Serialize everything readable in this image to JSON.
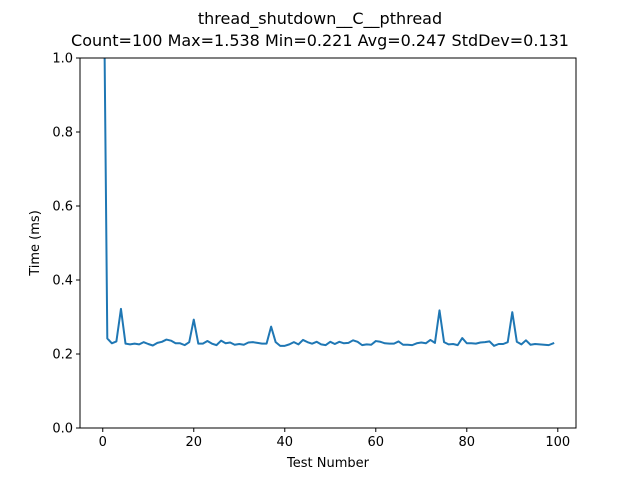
{
  "chart_data": {
    "type": "line",
    "title": "thread_shutdown__C__pthread",
    "subtitle": "Count=100 Max=1.538 Min=0.221 Avg=0.247 StdDev=0.131",
    "xlabel": "Test Number",
    "ylabel": "Time (ms)",
    "xlim": [
      -5,
      104
    ],
    "ylim": [
      0.0,
      1.0
    ],
    "xticks": [
      0,
      20,
      40,
      60,
      80,
      100
    ],
    "xtick_labels": [
      "0",
      "20",
      "40",
      "60",
      "80",
      "100"
    ],
    "yticks": [
      0.0,
      0.2,
      0.4,
      0.6,
      0.8,
      1.0
    ],
    "ytick_labels": [
      "0.0",
      "0.2",
      "0.4",
      "0.6",
      "0.8",
      "1.0"
    ],
    "grid": false,
    "line_color": "#1f77b4",
    "series": [
      {
        "x": [
          0,
          1,
          2,
          3,
          4,
          5,
          6,
          7,
          8,
          9,
          10,
          11,
          12,
          13,
          14,
          15,
          16,
          17,
          18,
          19,
          20,
          21,
          22,
          23,
          24,
          25,
          26,
          27,
          28,
          29,
          30,
          31,
          32,
          33,
          34,
          35,
          36,
          37,
          38,
          39,
          40,
          41,
          42,
          43,
          44,
          45,
          46,
          47,
          48,
          49,
          50,
          51,
          52,
          53,
          54,
          55,
          56,
          57,
          58,
          59,
          60,
          61,
          62,
          63,
          64,
          65,
          66,
          67,
          68,
          69,
          70,
          71,
          72,
          73,
          74,
          75,
          76,
          77,
          78,
          79,
          80,
          81,
          82,
          83,
          84,
          85,
          86,
          87,
          88,
          89,
          90,
          91,
          92,
          93,
          94,
          95,
          96,
          97,
          98,
          99
        ],
        "values": [
          1.538,
          0.242,
          0.229,
          0.234,
          0.322,
          0.228,
          0.226,
          0.228,
          0.226,
          0.232,
          0.227,
          0.223,
          0.23,
          0.233,
          0.239,
          0.236,
          0.229,
          0.229,
          0.224,
          0.232,
          0.293,
          0.228,
          0.228,
          0.235,
          0.228,
          0.224,
          0.236,
          0.229,
          0.231,
          0.225,
          0.227,
          0.225,
          0.231,
          0.232,
          0.23,
          0.228,
          0.228,
          0.274,
          0.232,
          0.222,
          0.222,
          0.226,
          0.232,
          0.226,
          0.238,
          0.232,
          0.228,
          0.233,
          0.226,
          0.224,
          0.233,
          0.227,
          0.233,
          0.229,
          0.23,
          0.237,
          0.233,
          0.224,
          0.226,
          0.225,
          0.235,
          0.233,
          0.229,
          0.228,
          0.228,
          0.234,
          0.225,
          0.225,
          0.224,
          0.229,
          0.231,
          0.229,
          0.238,
          0.23,
          0.318,
          0.232,
          0.226,
          0.227,
          0.224,
          0.243,
          0.229,
          0.229,
          0.228,
          0.231,
          0.232,
          0.234,
          0.222,
          0.227,
          0.227,
          0.232,
          0.313,
          0.233,
          0.226,
          0.237,
          0.225,
          0.227,
          0.226,
          0.225,
          0.224,
          0.229
        ]
      }
    ]
  }
}
